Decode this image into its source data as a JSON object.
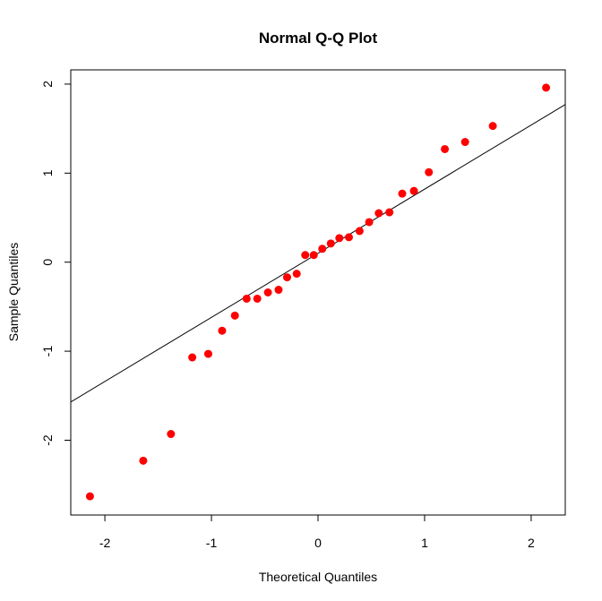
{
  "chart_data": {
    "type": "scatter",
    "title": "Normal Q-Q Plot",
    "xlabel": "Theoretical Quantiles",
    "ylabel": "Sample Quantiles",
    "xlim": [
      -2.32,
      2.32
    ],
    "ylim": [
      -2.84,
      2.16
    ],
    "x_ticks": [
      -2,
      -1,
      0,
      1,
      2
    ],
    "x_tick_labels": [
      "-2",
      "-1",
      "0",
      "1",
      "2"
    ],
    "y_ticks": [
      -2,
      -1,
      0,
      1,
      2
    ],
    "y_tick_labels": [
      "-2",
      "-1",
      "0",
      "1",
      "2"
    ],
    "grid": false,
    "point_color": "#ff0000",
    "line_color": "#000000",
    "reference_line": {
      "intercept": 0.1,
      "slope": 0.72
    },
    "points": [
      [
        -2.14,
        -2.63
      ],
      [
        -1.64,
        -2.23
      ],
      [
        -1.38,
        -1.93
      ],
      [
        -1.18,
        -1.07
      ],
      [
        -1.03,
        -1.03
      ],
      [
        -0.9,
        -0.77
      ],
      [
        -0.78,
        -0.6
      ],
      [
        -0.67,
        -0.41
      ],
      [
        -0.57,
        -0.41
      ],
      [
        -0.47,
        -0.34
      ],
      [
        -0.37,
        -0.31
      ],
      [
        -0.29,
        -0.17
      ],
      [
        -0.2,
        -0.13
      ],
      [
        -0.12,
        0.08
      ],
      [
        -0.04,
        0.08
      ],
      [
        0.04,
        0.15
      ],
      [
        0.12,
        0.21
      ],
      [
        0.2,
        0.27
      ],
      [
        0.29,
        0.28
      ],
      [
        0.39,
        0.35
      ],
      [
        0.48,
        0.45
      ],
      [
        0.57,
        0.55
      ],
      [
        0.67,
        0.56
      ],
      [
        0.79,
        0.77
      ],
      [
        0.9,
        0.8
      ],
      [
        1.04,
        1.01
      ],
      [
        1.19,
        1.27
      ],
      [
        1.38,
        1.35
      ],
      [
        1.64,
        1.53
      ],
      [
        2.14,
        1.96
      ]
    ]
  }
}
